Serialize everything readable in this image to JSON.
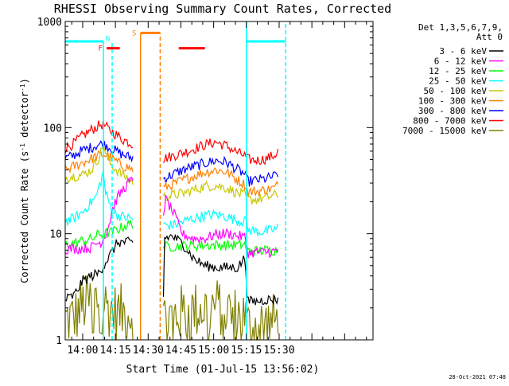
{
  "chart_data": {
    "type": "line",
    "title": "RHESSI Observing Summary Count Rates, Corrected",
    "xlabel": "Start Time (01-Jul-15 13:56:02)",
    "ylabel": "Corrected Count Rate (s⁻¹ detector⁻¹)",
    "ylabel_parts": [
      "Corrected Count Rate (s",
      "-1",
      " detector",
      "-1",
      ")"
    ],
    "y_scale": "log",
    "ylim": [
      1,
      1000
    ],
    "xlim_min": [
      -4,
      137
    ],
    "y_ticks": [
      {
        "value": 1,
        "label": "1"
      },
      {
        "value": 10,
        "label": "10"
      },
      {
        "value": 100,
        "label": "100"
      },
      {
        "value": 1000,
        "label": "1000"
      }
    ],
    "x_ticks": [
      {
        "value": 4,
        "label": "14:00"
      },
      {
        "value": 19,
        "label": "14:15"
      },
      {
        "value": 34,
        "label": "14:30"
      },
      {
        "value": 49,
        "label": "14:45"
      },
      {
        "value": 64,
        "label": "15:00"
      },
      {
        "value": 79,
        "label": "15:15"
      },
      {
        "value": 94,
        "label": "15:30"
      }
    ],
    "legend_header": [
      "Det 1,3,5,6,7,9,",
      "Att 0"
    ],
    "legend_position": "right",
    "grid": false,
    "timestamp": "28-Oct-2021 07:48",
    "series": [
      {
        "name": "3 - 6 keV",
        "color": "#000000",
        "wide_gaps": false,
        "values": [
          [
            -4,
            2.4
          ],
          [
            0,
            2.6
          ],
          [
            4,
            3.6
          ],
          [
            8,
            4.0
          ],
          [
            11,
            4.2
          ],
          [
            14,
            5.2
          ],
          [
            17,
            6.5
          ],
          [
            20,
            8.3
          ],
          [
            24,
            8.3
          ],
          [
            27,
            8.2
          ],
          [
            41,
            2.6
          ],
          [
            41,
            9.0
          ],
          [
            45,
            9.5
          ],
          [
            50,
            8.0
          ],
          [
            55,
            5.8
          ],
          [
            60,
            5.0
          ],
          [
            65,
            4.8
          ],
          [
            70,
            4.8
          ],
          [
            75,
            4.8
          ],
          [
            78.5,
            6.0
          ],
          [
            79.5,
            2.3
          ],
          [
            84,
            2.3
          ],
          [
            88,
            2.4
          ],
          [
            92,
            2.4
          ],
          [
            93.5,
            2.4
          ]
        ]
      },
      {
        "name": "6 - 12 keV",
        "color": "#ff00ff",
        "wide_gaps": false,
        "values": [
          [
            -4,
            7.2
          ],
          [
            0,
            7.2
          ],
          [
            4,
            7.3
          ],
          [
            8,
            7.4
          ],
          [
            10,
            8.1
          ],
          [
            12,
            8.2
          ],
          [
            14,
            9.4
          ],
          [
            16,
            12.0
          ],
          [
            18,
            18.0
          ],
          [
            20,
            22.0
          ],
          [
            23,
            27.0
          ],
          [
            25,
            30.0
          ],
          [
            27,
            32.0
          ],
          [
            41,
            16.0
          ],
          [
            42,
            21.0
          ],
          [
            44,
            18.0
          ],
          [
            46,
            15.0
          ],
          [
            48,
            12.0
          ],
          [
            50,
            9.8
          ],
          [
            55,
            9.0
          ],
          [
            60,
            9.0
          ],
          [
            65,
            9.8
          ],
          [
            70,
            10.1
          ],
          [
            75,
            9.6
          ],
          [
            78.5,
            9.2
          ],
          [
            79.5,
            6.6
          ],
          [
            84,
            6.7
          ],
          [
            88,
            6.7
          ],
          [
            92,
            6.8
          ],
          [
            93.5,
            6.8
          ]
        ]
      },
      {
        "name": "12 - 25 keV",
        "color": "#00ff00",
        "wide_gaps": false,
        "values": [
          [
            -4,
            7.8
          ],
          [
            0,
            8.1
          ],
          [
            4,
            8.6
          ],
          [
            8,
            8.9
          ],
          [
            11,
            9.8
          ],
          [
            14,
            10.0
          ],
          [
            17,
            10.3
          ],
          [
            20,
            11.0
          ],
          [
            24,
            12.0
          ],
          [
            27,
            12.5
          ],
          [
            41,
            7.5
          ],
          [
            45,
            7.6
          ],
          [
            50,
            7.7
          ],
          [
            55,
            7.7
          ],
          [
            60,
            7.8
          ],
          [
            65,
            7.8
          ],
          [
            70,
            7.8
          ],
          [
            75,
            7.8
          ],
          [
            78.5,
            7.9
          ],
          [
            79.5,
            6.9
          ],
          [
            84,
            6.9
          ],
          [
            88,
            7.0
          ],
          [
            92,
            7.0
          ],
          [
            93.5,
            7.1
          ]
        ]
      },
      {
        "name": "25 - 50 keV",
        "color": "#00ffff",
        "wide_gaps": false,
        "values": [
          [
            -4,
            13.0
          ],
          [
            0,
            14.0
          ],
          [
            4,
            16.0
          ],
          [
            8,
            20.0
          ],
          [
            10,
            22.0
          ],
          [
            12,
            30.0
          ],
          [
            13.5,
            38.0
          ],
          [
            14.5,
            24.0
          ],
          [
            16,
            20.0
          ],
          [
            18,
            16.0
          ],
          [
            20,
            15.0
          ],
          [
            23,
            14.3
          ],
          [
            26,
            14.0
          ],
          [
            27,
            13.8
          ],
          [
            41,
            12.0
          ],
          [
            45,
            12.0
          ],
          [
            50,
            13.0
          ],
          [
            55,
            14.0
          ],
          [
            60,
            14.8
          ],
          [
            65,
            15.2
          ],
          [
            70,
            14.5
          ],
          [
            75,
            13.3
          ],
          [
            77,
            13.0
          ],
          [
            78,
            14.5
          ],
          [
            78.5,
            13.5
          ],
          [
            79.5,
            11.0
          ],
          [
            84,
            10.5
          ],
          [
            88,
            10.5
          ],
          [
            92,
            11.0
          ],
          [
            93.5,
            11.4
          ]
        ]
      },
      {
        "name": "50 - 100 keV",
        "color": "#c8c800",
        "wide_gaps": false,
        "values": [
          [
            -4,
            34.0
          ],
          [
            0,
            35.0
          ],
          [
            4,
            36.0
          ],
          [
            8,
            40.0
          ],
          [
            10,
            47.0
          ],
          [
            12,
            55.0
          ],
          [
            13.5,
            72.0
          ],
          [
            14.5,
            55.0
          ],
          [
            17,
            45.0
          ],
          [
            20,
            39.0
          ],
          [
            24,
            34.0
          ],
          [
            27,
            31.0
          ],
          [
            41,
            22.0
          ],
          [
            45,
            23.0
          ],
          [
            50,
            24.0
          ],
          [
            55,
            26.0
          ],
          [
            60,
            28.0
          ],
          [
            65,
            28.5
          ],
          [
            70,
            27.0
          ],
          [
            75,
            24.0
          ],
          [
            78.5,
            23.0
          ],
          [
            79.5,
            21.0
          ],
          [
            84,
            21.0
          ],
          [
            88,
            22.0
          ],
          [
            92,
            23.0
          ],
          [
            93.5,
            23.5
          ]
        ]
      },
      {
        "name": "100 - 300 keV",
        "color": "#ff8000",
        "wide_gaps": false,
        "values": [
          [
            -4,
            40.0
          ],
          [
            0,
            43.0
          ],
          [
            4,
            47.0
          ],
          [
            8,
            51.0
          ],
          [
            11,
            54.0
          ],
          [
            13,
            56.0
          ],
          [
            15,
            55.0
          ],
          [
            18,
            50.0
          ],
          [
            22,
            44.0
          ],
          [
            25,
            42.0
          ],
          [
            27,
            40.0
          ],
          [
            41,
            27.0
          ],
          [
            45,
            29.0
          ],
          [
            50,
            32.0
          ],
          [
            55,
            35.0
          ],
          [
            60,
            38.0
          ],
          [
            65,
            40.0
          ],
          [
            70,
            38.0
          ],
          [
            75,
            32.0
          ],
          [
            78.5,
            29.0
          ],
          [
            79.5,
            25.0
          ],
          [
            84,
            25.0
          ],
          [
            88,
            26.0
          ],
          [
            92,
            27.0
          ],
          [
            93.5,
            29.0
          ]
        ]
      },
      {
        "name": "300 - 800 keV",
        "color": "#0000ff",
        "wide_gaps": false,
        "values": [
          [
            -4,
            51.0
          ],
          [
            0,
            55.0
          ],
          [
            4,
            61.0
          ],
          [
            8,
            65.0
          ],
          [
            11,
            69.0
          ],
          [
            13,
            70.0
          ],
          [
            15,
            68.0
          ],
          [
            18,
            62.0
          ],
          [
            22,
            56.0
          ],
          [
            25,
            53.0
          ],
          [
            27,
            52.0
          ],
          [
            41,
            33.0
          ],
          [
            45,
            36.0
          ],
          [
            50,
            40.0
          ],
          [
            55,
            43.0
          ],
          [
            60,
            46.0
          ],
          [
            65,
            49.0
          ],
          [
            70,
            47.0
          ],
          [
            75,
            40.0
          ],
          [
            78.5,
            36.0
          ],
          [
            79.5,
            31.0
          ],
          [
            84,
            32.0
          ],
          [
            88,
            33.0
          ],
          [
            92,
            35.0
          ],
          [
            93.5,
            37.0
          ]
        ]
      },
      {
        "name": "800 - 7000 keV",
        "color": "#ff0000",
        "wide_gaps": false,
        "values": [
          [
            -4,
            64.0
          ],
          [
            0,
            71.0
          ],
          [
            4,
            84.0
          ],
          [
            8,
            95.0
          ],
          [
            11,
            103.0
          ],
          [
            12.5,
            108.0
          ],
          [
            14,
            104.0
          ],
          [
            16,
            96.0
          ],
          [
            19,
            87.0
          ],
          [
            22,
            78.0
          ],
          [
            25,
            73.0
          ],
          [
            27,
            70.0
          ],
          [
            41,
            51.0
          ],
          [
            45,
            54.0
          ],
          [
            50,
            58.0
          ],
          [
            55,
            63.0
          ],
          [
            60,
            69.0
          ],
          [
            65,
            73.0
          ],
          [
            70,
            67.0
          ],
          [
            75,
            58.0
          ],
          [
            78.5,
            54.0
          ],
          [
            79.5,
            50.0
          ],
          [
            84,
            49.0
          ],
          [
            88,
            51.0
          ],
          [
            92,
            55.0
          ],
          [
            93.5,
            60.0
          ]
        ]
      },
      {
        "name": "7000 - 15000 keV",
        "color": "#808000",
        "wide_gaps": true,
        "values": [
          [
            -4,
            1.55
          ],
          [
            0,
            1.6
          ],
          [
            4,
            2.1
          ],
          [
            8,
            2.3
          ],
          [
            11,
            2.4
          ],
          [
            14,
            2.2
          ],
          [
            17,
            1.9
          ],
          [
            20,
            1.8
          ],
          [
            24,
            1.8
          ],
          [
            27,
            1.8
          ],
          [
            41,
            1.6
          ],
          [
            45,
            1.7
          ],
          [
            50,
            1.8
          ],
          [
            55,
            1.9
          ],
          [
            60,
            2.0
          ],
          [
            65,
            2.1
          ],
          [
            70,
            1.9
          ],
          [
            75,
            1.7
          ],
          [
            78.5,
            1.7
          ],
          [
            79.5,
            1.3
          ],
          [
            84,
            1.4
          ],
          [
            88,
            1.4
          ],
          [
            92,
            1.5
          ],
          [
            93.5,
            1.5
          ]
        ]
      }
    ],
    "annotations": {
      "night_bars": [
        {
          "label": "",
          "color": "#00ffff",
          "x_start": -4,
          "x_end": 13.5,
          "y": 650
        },
        {
          "label": "",
          "color": "#00ffff",
          "x_start": 79,
          "x_end": 97,
          "y": 650
        }
      ],
      "flare_bars": [
        {
          "label": "F",
          "color": "#ff0000",
          "x_start": 15,
          "x_end": 21,
          "y": 560
        },
        {
          "label": "",
          "color": "#ff0000",
          "x_start": 48,
          "x_end": 60,
          "y": 560
        }
      ],
      "saa_bars": [
        {
          "label": "S",
          "color": "#ff8000",
          "x_start": 30.5,
          "x_end": 39.5,
          "y": 780
        }
      ],
      "markers": [
        {
          "label": "N",
          "color": "#00ffff",
          "x": 15.5,
          "y": 690
        }
      ],
      "vlines": [
        {
          "color": "#00ffff",
          "x": 13.5,
          "style": "solid",
          "y_top": 650
        },
        {
          "color": "#00ffff",
          "x": 17.5,
          "style": "dash",
          "y_top": 650
        },
        {
          "color": "#ff8000",
          "x": 30.5,
          "style": "solid",
          "y_top": 780
        },
        {
          "color": "#ff8000",
          "x": 39.5,
          "style": "dash",
          "y_top": 780
        },
        {
          "color": "#00ffff",
          "x": 79,
          "style": "solid",
          "y_top": 1000
        },
        {
          "color": "#00ffff",
          "x": 97,
          "style": "dash",
          "y_top": 1000
        }
      ]
    }
  }
}
